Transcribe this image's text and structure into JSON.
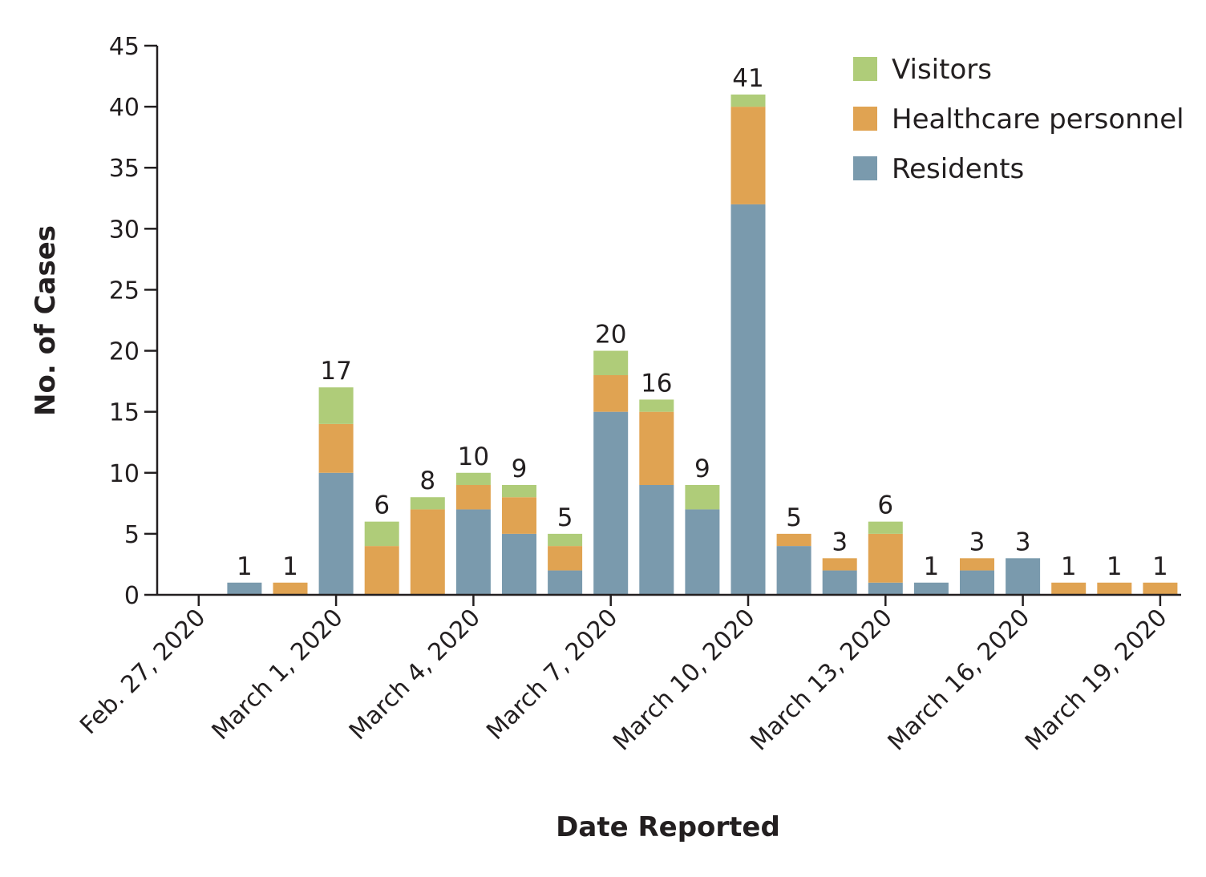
{
  "chart_data": {
    "type": "bar",
    "stacked": true,
    "xlabel": "Date Reported",
    "ylabel": "No. of Cases",
    "ylim": [
      0,
      45
    ],
    "yticks": [
      0,
      5,
      10,
      15,
      20,
      25,
      30,
      35,
      40,
      45
    ],
    "x_tick_labels": [
      "Feb. 27, 2020",
      "March 1, 2020",
      "March 4, 2020",
      "March 7, 2020",
      "March 10, 2020",
      "March 13, 2020",
      "March 16, 2020",
      "March 19, 2020"
    ],
    "x_tick_label_dates": [
      "2020-02-27",
      "2020-03-01",
      "2020-03-04",
      "2020-03-07",
      "2020-03-10",
      "2020-03-13",
      "2020-03-16",
      "2020-03-19"
    ],
    "categories": [
      "2020-02-28",
      "2020-02-29",
      "2020-03-01",
      "2020-03-02",
      "2020-03-03",
      "2020-03-04",
      "2020-03-05",
      "2020-03-06",
      "2020-03-07",
      "2020-03-08",
      "2020-03-09",
      "2020-03-10",
      "2020-03-11",
      "2020-03-12",
      "2020-03-13",
      "2020-03-14",
      "2020-03-15",
      "2020-03-16",
      "2020-03-17",
      "2020-03-18",
      "2020-03-19",
      "2020-03-20"
    ],
    "series": [
      {
        "name": "Residents",
        "color": "#7a9aad",
        "values": [
          1,
          0,
          10,
          0,
          0,
          7,
          5,
          2,
          15,
          9,
          7,
          32,
          4,
          2,
          1,
          1,
          2,
          3,
          0,
          0,
          0,
          0
        ]
      },
      {
        "name": "Healthcare personnel",
        "color": "#e0a352",
        "values": [
          0,
          1,
          4,
          4,
          7,
          2,
          3,
          2,
          3,
          6,
          0,
          8,
          1,
          1,
          4,
          0,
          1,
          0,
          1,
          1,
          1,
          0
        ]
      },
      {
        "name": "Visitors",
        "color": "#afcc79",
        "values": [
          0,
          0,
          3,
          2,
          1,
          1,
          1,
          1,
          2,
          1,
          2,
          1,
          0,
          0,
          1,
          0,
          0,
          0,
          0,
          0,
          0,
          0
        ]
      }
    ],
    "totals": [
      1,
      1,
      17,
      6,
      8,
      10,
      9,
      5,
      20,
      16,
      9,
      41,
      5,
      3,
      6,
      1,
      3,
      3,
      1,
      1,
      1,
      null
    ],
    "legend": {
      "placement": "top-right",
      "order": [
        "Visitors",
        "Healthcare personnel",
        "Residents"
      ]
    },
    "grid": false
  }
}
